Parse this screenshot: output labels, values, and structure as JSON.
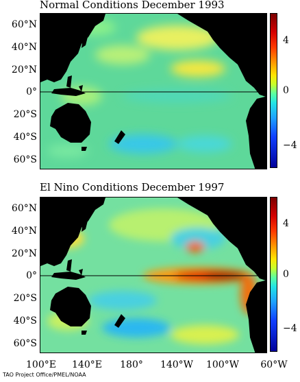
{
  "panels": [
    {
      "title": "Normal Conditions December 1993"
    },
    {
      "title": "El Nino Conditions December 1997"
    }
  ],
  "lat_labels": [
    "60°N",
    "40°N",
    "20°N",
    "0°",
    "20°S",
    "40°S",
    "60°S"
  ],
  "lon_labels": [
    "100°E",
    "140°E",
    "180°",
    "140°W",
    "100°W",
    "60°W"
  ],
  "colorbar": {
    "labels": [
      "4",
      "0",
      "−4"
    ]
  },
  "credit": "TAO Project Office/PMEL/NOAA",
  "colors": {
    "land": "#000000",
    "background_sea": "#5ed89a",
    "warm_anomaly": "#c80000",
    "cool_anomaly": "#1e8cff"
  }
}
